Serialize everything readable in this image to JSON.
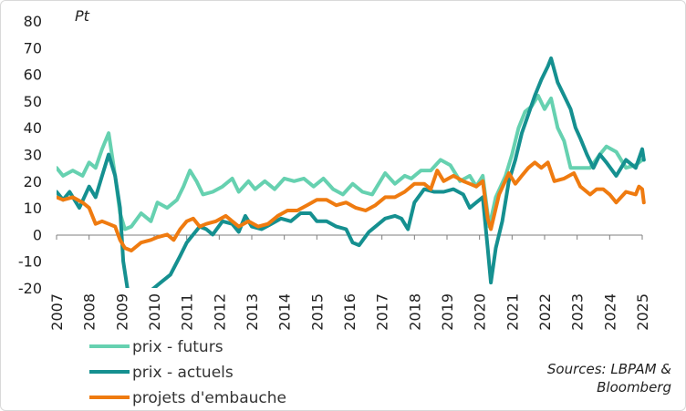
{
  "chart_data": {
    "type": "line",
    "unit_label": "Pt",
    "ylim": [
      -20,
      80
    ],
    "yticks": [
      -20,
      -10,
      0,
      10,
      20,
      30,
      40,
      50,
      60,
      70,
      80
    ],
    "xlim": [
      2007,
      2025
    ],
    "xticks": [
      "2007",
      "2008",
      "2009",
      "2010",
      "2011",
      "2012",
      "2013",
      "2014",
      "2015",
      "2016",
      "2017",
      "2018",
      "2019",
      "2020",
      "2021",
      "2022",
      "2023",
      "2024",
      "2025"
    ],
    "grid": false,
    "legend": "bottom-left",
    "source": [
      "Sources: LBPAM &",
      "Bloomberg"
    ],
    "series": [
      {
        "name": "prix - futurs",
        "color": "#66d1b0",
        "points": [
          [
            2007.0,
            25
          ],
          [
            2007.2,
            22
          ],
          [
            2007.5,
            24
          ],
          [
            2007.8,
            22
          ],
          [
            2008.0,
            27
          ],
          [
            2008.2,
            25
          ],
          [
            2008.4,
            32
          ],
          [
            2008.6,
            38
          ],
          [
            2008.8,
            22
          ],
          [
            2008.95,
            8
          ],
          [
            2009.1,
            2
          ],
          [
            2009.3,
            3
          ],
          [
            2009.6,
            8
          ],
          [
            2009.9,
            5
          ],
          [
            2010.1,
            12
          ],
          [
            2010.4,
            10
          ],
          [
            2010.7,
            13
          ],
          [
            2010.9,
            18
          ],
          [
            2011.1,
            24
          ],
          [
            2011.3,
            20
          ],
          [
            2011.5,
            15
          ],
          [
            2011.8,
            16
          ],
          [
            2012.1,
            18
          ],
          [
            2012.4,
            21
          ],
          [
            2012.6,
            16
          ],
          [
            2012.9,
            20
          ],
          [
            2013.1,
            17
          ],
          [
            2013.4,
            20
          ],
          [
            2013.7,
            17
          ],
          [
            2014.0,
            21
          ],
          [
            2014.3,
            20
          ],
          [
            2014.6,
            21
          ],
          [
            2014.9,
            18
          ],
          [
            2015.2,
            21
          ],
          [
            2015.5,
            17
          ],
          [
            2015.8,
            15
          ],
          [
            2016.1,
            19
          ],
          [
            2016.4,
            16
          ],
          [
            2016.7,
            15
          ],
          [
            2016.9,
            19
          ],
          [
            2017.1,
            23
          ],
          [
            2017.4,
            19
          ],
          [
            2017.7,
            22
          ],
          [
            2017.9,
            21
          ],
          [
            2018.2,
            24
          ],
          [
            2018.5,
            24
          ],
          [
            2018.8,
            28
          ],
          [
            2019.1,
            26
          ],
          [
            2019.4,
            20
          ],
          [
            2019.7,
            22
          ],
          [
            2019.9,
            18
          ],
          [
            2020.1,
            22
          ],
          [
            2020.3,
            3
          ],
          [
            2020.5,
            14
          ],
          [
            2020.8,
            22
          ],
          [
            2021.0,
            30
          ],
          [
            2021.2,
            40
          ],
          [
            2021.4,
            46
          ],
          [
            2021.6,
            48
          ],
          [
            2021.8,
            52
          ],
          [
            2022.0,
            47
          ],
          [
            2022.2,
            51
          ],
          [
            2022.4,
            40
          ],
          [
            2022.6,
            35
          ],
          [
            2022.8,
            25
          ],
          [
            2023.0,
            25
          ],
          [
            2023.2,
            25
          ],
          [
            2023.4,
            25
          ],
          [
            2023.7,
            30
          ],
          [
            2023.9,
            33
          ],
          [
            2024.2,
            31
          ],
          [
            2024.5,
            25
          ],
          [
            2024.8,
            26
          ],
          [
            2025.0,
            28
          ],
          [
            2025.05,
            28
          ]
        ]
      },
      {
        "name": "prix - actuels",
        "color": "#159090",
        "points": [
          [
            2007.0,
            16
          ],
          [
            2007.2,
            13
          ],
          [
            2007.4,
            16
          ],
          [
            2007.7,
            10
          ],
          [
            2008.0,
            18
          ],
          [
            2008.2,
            14
          ],
          [
            2008.4,
            22
          ],
          [
            2008.6,
            30
          ],
          [
            2008.8,
            22
          ],
          [
            2008.95,
            10
          ],
          [
            2009.05,
            -10
          ],
          [
            2009.2,
            -22
          ],
          [
            2009.4,
            -23
          ],
          [
            2009.6,
            -21
          ],
          [
            2009.9,
            -21
          ],
          [
            2010.2,
            -18
          ],
          [
            2010.5,
            -15
          ],
          [
            2010.8,
            -8
          ],
          [
            2011.0,
            -3
          ],
          [
            2011.2,
            0
          ],
          [
            2011.4,
            3
          ],
          [
            2011.6,
            2
          ],
          [
            2011.8,
            0
          ],
          [
            2012.1,
            5
          ],
          [
            2012.4,
            4
          ],
          [
            2012.6,
            1
          ],
          [
            2012.8,
            7
          ],
          [
            2013.0,
            3
          ],
          [
            2013.3,
            2
          ],
          [
            2013.6,
            4
          ],
          [
            2013.9,
            6
          ],
          [
            2014.2,
            5
          ],
          [
            2014.5,
            8
          ],
          [
            2014.8,
            8
          ],
          [
            2015.0,
            5
          ],
          [
            2015.3,
            5
          ],
          [
            2015.6,
            3
          ],
          [
            2015.9,
            2
          ],
          [
            2016.1,
            -3
          ],
          [
            2016.3,
            -4
          ],
          [
            2016.6,
            1
          ],
          [
            2016.9,
            4
          ],
          [
            2017.1,
            6
          ],
          [
            2017.4,
            7
          ],
          [
            2017.6,
            6
          ],
          [
            2017.8,
            2
          ],
          [
            2018.0,
            12
          ],
          [
            2018.3,
            17
          ],
          [
            2018.6,
            16
          ],
          [
            2018.9,
            16
          ],
          [
            2019.2,
            17
          ],
          [
            2019.5,
            15
          ],
          [
            2019.7,
            10
          ],
          [
            2019.9,
            12
          ],
          [
            2020.1,
            14
          ],
          [
            2020.25,
            -5
          ],
          [
            2020.35,
            -18
          ],
          [
            2020.5,
            -5
          ],
          [
            2020.7,
            5
          ],
          [
            2020.9,
            20
          ],
          [
            2021.1,
            28
          ],
          [
            2021.3,
            38
          ],
          [
            2021.5,
            45
          ],
          [
            2021.7,
            52
          ],
          [
            2021.9,
            58
          ],
          [
            2022.1,
            63
          ],
          [
            2022.2,
            66
          ],
          [
            2022.4,
            57
          ],
          [
            2022.6,
            52
          ],
          [
            2022.8,
            47
          ],
          [
            2022.95,
            40
          ],
          [
            2023.1,
            36
          ],
          [
            2023.3,
            30
          ],
          [
            2023.5,
            25
          ],
          [
            2023.7,
            30
          ],
          [
            2023.9,
            27
          ],
          [
            2024.2,
            22
          ],
          [
            2024.5,
            28
          ],
          [
            2024.8,
            25
          ],
          [
            2025.0,
            32
          ],
          [
            2025.05,
            28
          ]
        ]
      },
      {
        "name": "projets d'embauche",
        "color": "#ef7b10",
        "points": [
          [
            2007.0,
            14
          ],
          [
            2007.2,
            13
          ],
          [
            2007.5,
            14
          ],
          [
            2007.8,
            12
          ],
          [
            2008.0,
            10
          ],
          [
            2008.2,
            4
          ],
          [
            2008.4,
            5
          ],
          [
            2008.6,
            4
          ],
          [
            2008.8,
            3
          ],
          [
            2008.95,
            -2
          ],
          [
            2009.1,
            -5
          ],
          [
            2009.3,
            -6
          ],
          [
            2009.6,
            -3
          ],
          [
            2009.9,
            -2
          ],
          [
            2010.1,
            -1
          ],
          [
            2010.4,
            0
          ],
          [
            2010.6,
            -2
          ],
          [
            2010.8,
            2
          ],
          [
            2011.0,
            5
          ],
          [
            2011.2,
            6
          ],
          [
            2011.4,
            3
          ],
          [
            2011.6,
            4
          ],
          [
            2011.9,
            5
          ],
          [
            2012.2,
            7
          ],
          [
            2012.4,
            5
          ],
          [
            2012.6,
            3
          ],
          [
            2012.9,
            5
          ],
          [
            2013.2,
            3
          ],
          [
            2013.5,
            4
          ],
          [
            2013.8,
            7
          ],
          [
            2014.1,
            9
          ],
          [
            2014.4,
            9
          ],
          [
            2014.7,
            11
          ],
          [
            2015.0,
            13
          ],
          [
            2015.3,
            13
          ],
          [
            2015.6,
            11
          ],
          [
            2015.9,
            12
          ],
          [
            2016.2,
            10
          ],
          [
            2016.5,
            9
          ],
          [
            2016.8,
            11
          ],
          [
            2017.1,
            14
          ],
          [
            2017.4,
            14
          ],
          [
            2017.7,
            16
          ],
          [
            2018.0,
            19
          ],
          [
            2018.3,
            19
          ],
          [
            2018.5,
            17
          ],
          [
            2018.7,
            24
          ],
          [
            2018.9,
            20
          ],
          [
            2019.2,
            22
          ],
          [
            2019.5,
            20
          ],
          [
            2019.7,
            19
          ],
          [
            2019.9,
            18
          ],
          [
            2020.1,
            20
          ],
          [
            2020.25,
            6
          ],
          [
            2020.35,
            2
          ],
          [
            2020.6,
            15
          ],
          [
            2020.9,
            23
          ],
          [
            2021.1,
            19
          ],
          [
            2021.3,
            22
          ],
          [
            2021.5,
            25
          ],
          [
            2021.7,
            27
          ],
          [
            2021.9,
            25
          ],
          [
            2022.1,
            27
          ],
          [
            2022.3,
            20
          ],
          [
            2022.6,
            21
          ],
          [
            2022.9,
            23
          ],
          [
            2023.1,
            18
          ],
          [
            2023.4,
            15
          ],
          [
            2023.6,
            17
          ],
          [
            2023.8,
            17
          ],
          [
            2024.0,
            15
          ],
          [
            2024.2,
            12
          ],
          [
            2024.5,
            16
          ],
          [
            2024.8,
            15
          ],
          [
            2024.9,
            18
          ],
          [
            2025.0,
            17
          ],
          [
            2025.05,
            12
          ]
        ]
      }
    ]
  }
}
